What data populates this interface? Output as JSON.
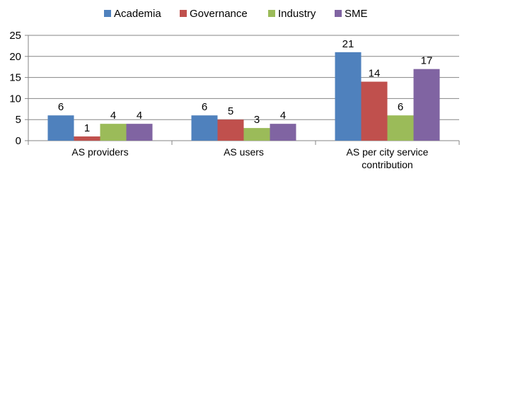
{
  "chart_data": {
    "type": "bar",
    "title": "",
    "xlabel": "",
    "ylabel": "",
    "categories": [
      [
        "AS providers"
      ],
      [
        "AS users"
      ],
      [
        "AS per city service",
        "contribution"
      ]
    ],
    "series": [
      {
        "name": "Academia",
        "color": "#4f81bd",
        "values": [
          6,
          6,
          21
        ]
      },
      {
        "name": "Governance",
        "color": "#c0504d",
        "values": [
          1,
          5,
          14
        ]
      },
      {
        "name": "Industry",
        "color": "#9bbb59",
        "values": [
          4,
          3,
          6
        ]
      },
      {
        "name": "SME",
        "color": "#8064a2",
        "values": [
          4,
          4,
          17
        ]
      }
    ],
    "ylim": [
      0,
      25
    ],
    "yticks": [
      0,
      5,
      10,
      15,
      20,
      25
    ],
    "grid": true,
    "legend": "top",
    "data_labels": true
  }
}
